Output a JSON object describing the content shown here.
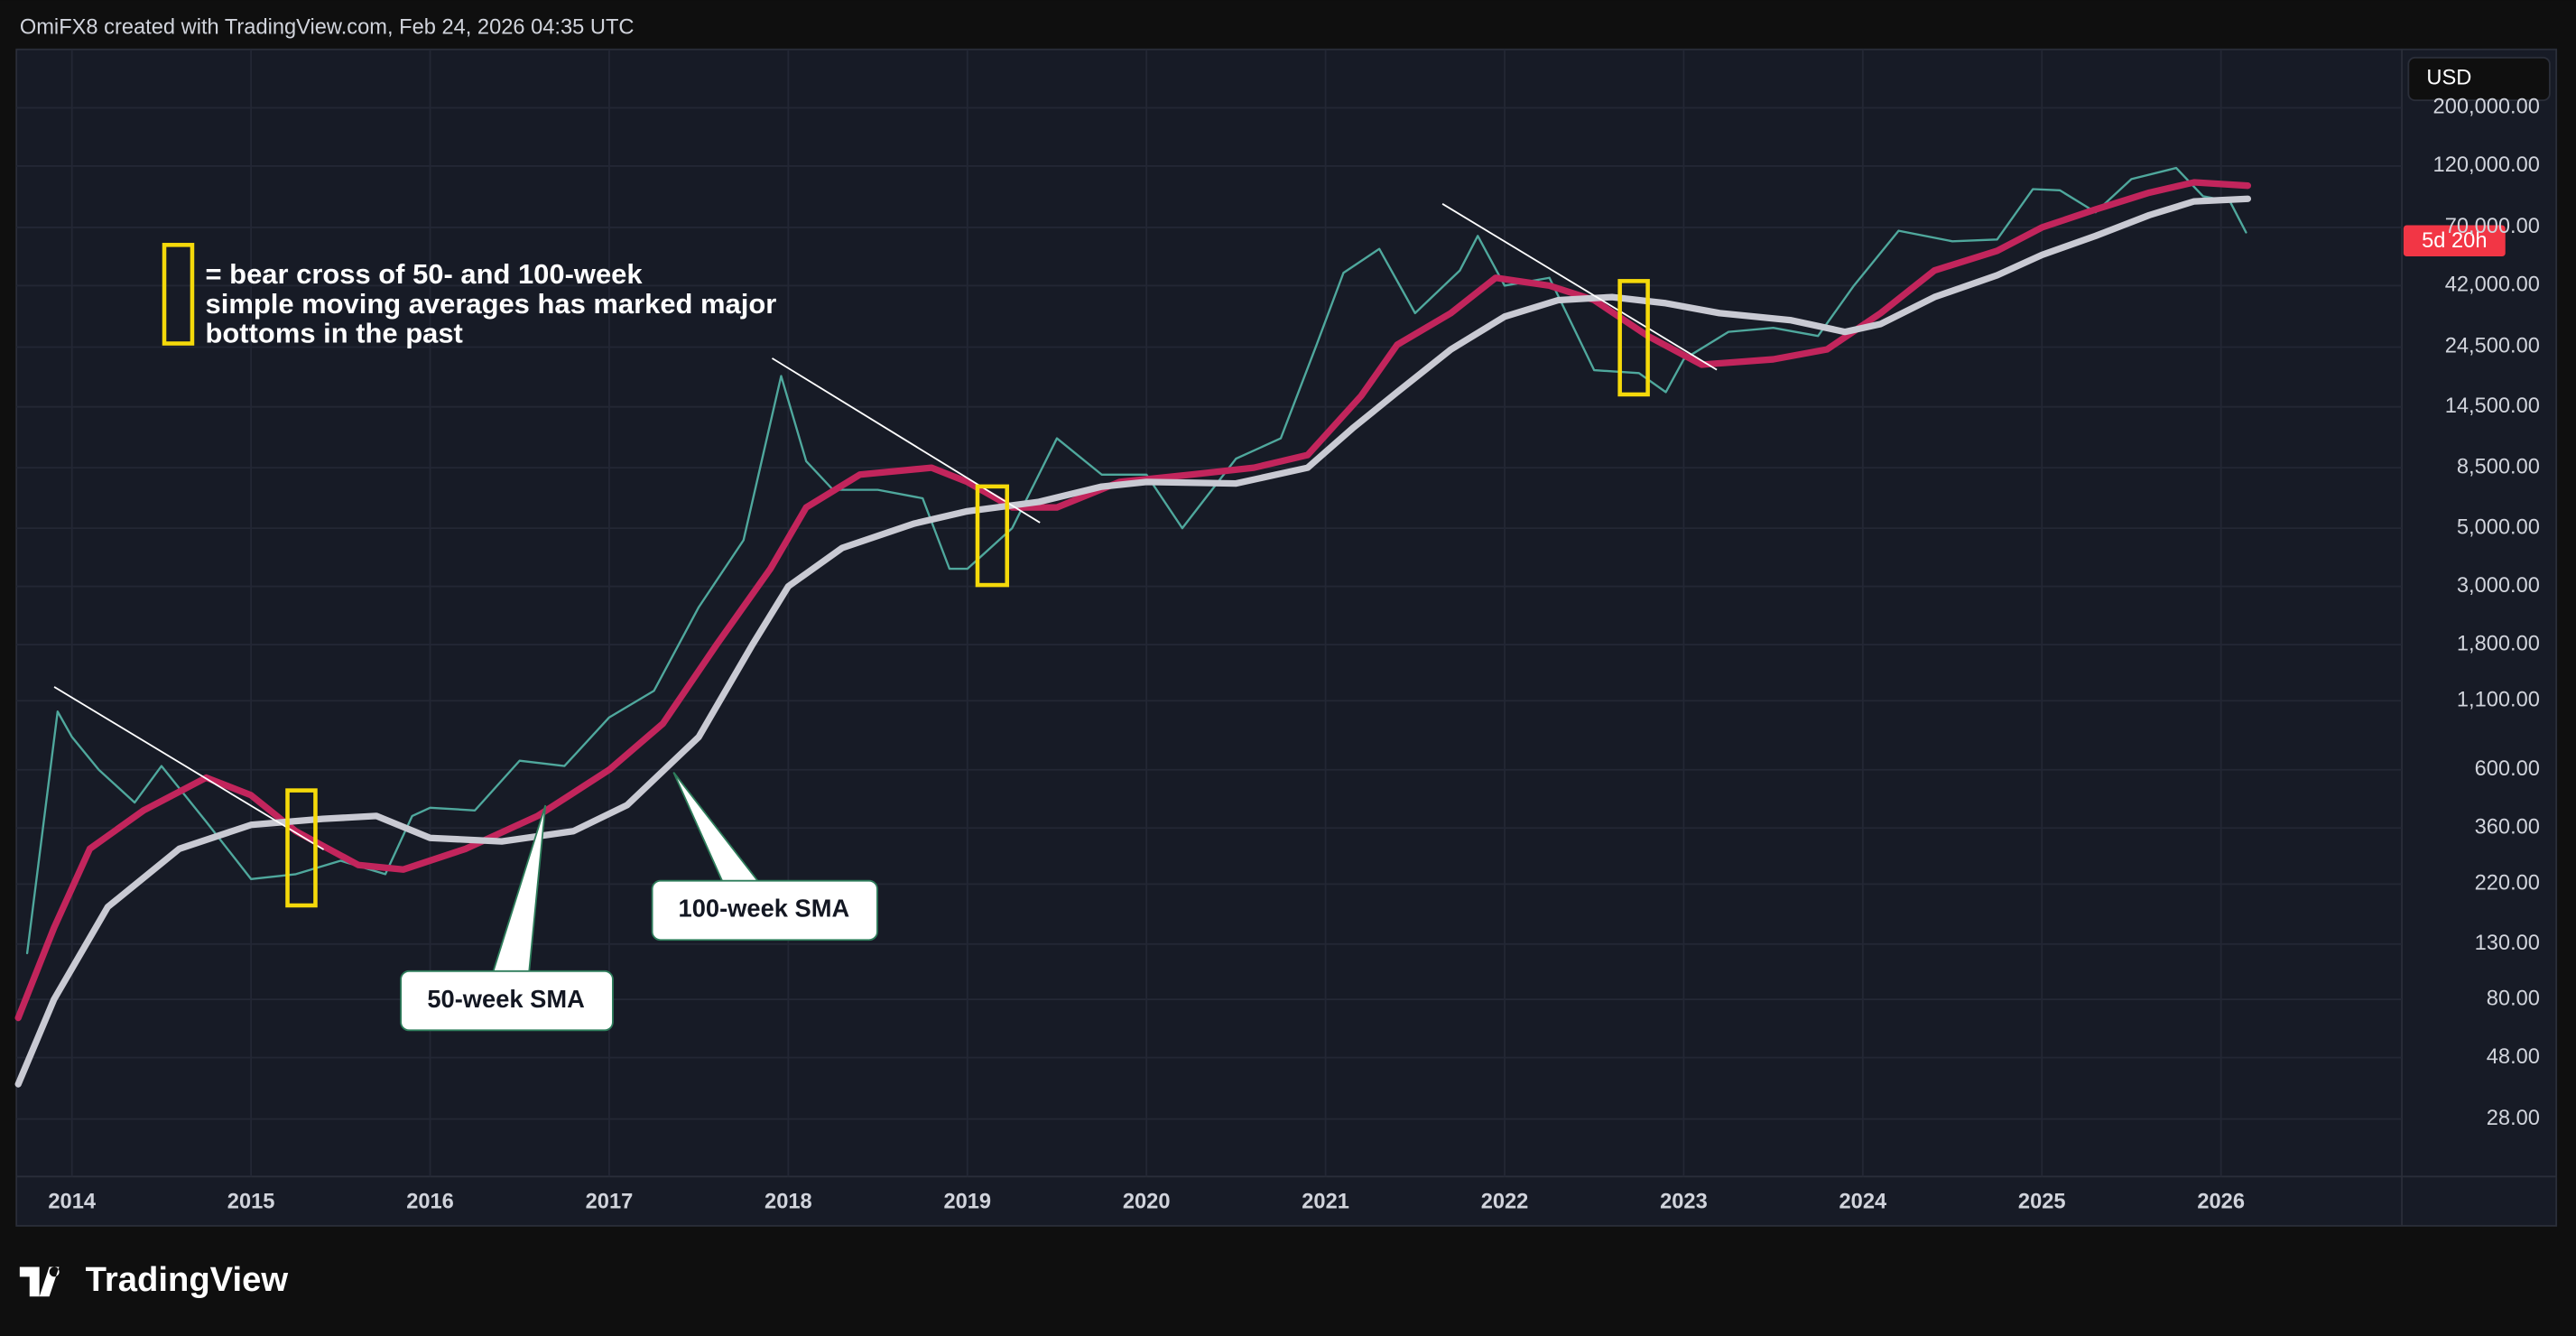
{
  "header": "OmiFX8 created with TradingView.com, Feb 24, 2026 04:35 UTC",
  "currency": "USD",
  "countdown": "5d 20h",
  "brand": "TradingView",
  "chart_data": {
    "type": "line",
    "log_scale": true,
    "grid": true,
    "annotation": [
      "= bear cross of 50- and 100-week",
      "simple moving averages has marked major",
      "bottoms in the past"
    ],
    "xlim": [
      2013.69,
      2027.01
    ],
    "xticks": [
      2014,
      2015,
      2016,
      2017,
      2018,
      2019,
      2020,
      2021,
      2022,
      2023,
      2024,
      2025,
      2026
    ],
    "ylim": [
      16.9,
      334000
    ],
    "yticks": [
      {
        "value": 28,
        "label": "28.00"
      },
      {
        "value": 48,
        "label": "48.00"
      },
      {
        "value": 80,
        "label": "80.00"
      },
      {
        "value": 130,
        "label": "130.00"
      },
      {
        "value": 220,
        "label": "220.00"
      },
      {
        "value": 360,
        "label": "360.00"
      },
      {
        "value": 600,
        "label": "600.00"
      },
      {
        "value": 1100,
        "label": "1,100.00"
      },
      {
        "value": 1800,
        "label": "1,800.00"
      },
      {
        "value": 3000,
        "label": "3,000.00"
      },
      {
        "value": 5000,
        "label": "5,000.00"
      },
      {
        "value": 8500,
        "label": "8,500.00"
      },
      {
        "value": 14500,
        "label": "14,500.00"
      },
      {
        "value": 24500,
        "label": "24,500.00"
      },
      {
        "value": 42000,
        "label": "42,000.00"
      },
      {
        "value": 70000,
        "label": "70,000.00"
      },
      {
        "value": 120000,
        "label": "120,000.00"
      },
      {
        "value": 200000,
        "label": "200,000.00"
      }
    ],
    "series": [
      {
        "color": "#4fa89d",
        "x": [
          2013.75,
          2013.92,
          2014.0,
          2014.15,
          2014.35,
          2014.5,
          2014.75,
          2015.0,
          2015.25,
          2015.5,
          2015.75,
          2015.9,
          2016.0,
          2016.25,
          2016.5,
          2016.75,
          2017.0,
          2017.25,
          2017.5,
          2017.75,
          2017.96,
          2018.1,
          2018.25,
          2018.5,
          2018.75,
          2018.9,
          2019.0,
          2019.25,
          2019.5,
          2019.75,
          2020.0,
          2020.2,
          2020.5,
          2020.75,
          2020.95,
          2021.1,
          2021.3,
          2021.5,
          2021.75,
          2021.85,
          2022.0,
          2022.25,
          2022.5,
          2022.75,
          2022.9,
          2023.0,
          2023.25,
          2023.5,
          2023.75,
          2023.95,
          2024.2,
          2024.5,
          2024.75,
          2024.95,
          2025.1,
          2025.3,
          2025.5,
          2025.75,
          2025.9,
          2026.05,
          2026.14
        ],
        "values": [
          120,
          1000,
          800,
          600,
          450,
          620,
          380,
          230,
          240,
          270,
          240,
          400,
          430,
          420,
          650,
          620,
          950,
          1200,
          2500,
          4500,
          19000,
          9000,
          7000,
          7000,
          6500,
          3500,
          3500,
          5000,
          11000,
          8000,
          8000,
          5000,
          9200,
          11000,
          25000,
          47000,
          58000,
          33000,
          48000,
          65000,
          42000,
          45000,
          20000,
          19500,
          16500,
          22000,
          28000,
          29000,
          27000,
          42000,
          68000,
          62000,
          63000,
          98000,
          97000,
          80000,
          107000,
          118000,
          92000,
          88000,
          67000
        ]
      },
      {
        "name": "50-week SMA",
        "color": "#c2255c",
        "x": [
          2013.7,
          2013.9,
          2014.1,
          2014.4,
          2014.75,
          2015.0,
          2015.25,
          2015.6,
          2015.85,
          2016.2,
          2016.6,
          2017.0,
          2017.3,
          2017.6,
          2017.9,
          2018.1,
          2018.4,
          2018.8,
          2019.0,
          2019.25,
          2019.5,
          2019.85,
          2020.25,
          2020.6,
          2020.9,
          2021.2,
          2021.4,
          2021.7,
          2021.95,
          2022.25,
          2022.5,
          2022.8,
          2023.1,
          2023.5,
          2023.8,
          2024.1,
          2024.4,
          2024.75,
          2025.0,
          2025.3,
          2025.6,
          2025.85,
          2026.15
        ],
        "values": [
          68,
          150,
          300,
          420,
          560,
          480,
          350,
          260,
          250,
          300,
          400,
          600,
          900,
          1800,
          3500,
          6000,
          8000,
          8500,
          7500,
          6000,
          6000,
          7500,
          8000,
          8500,
          9500,
          16000,
          25000,
          33000,
          45000,
          42000,
          37000,
          27000,
          21000,
          22000,
          24000,
          33000,
          48000,
          57000,
          70000,
          82000,
          95000,
          104000,
          101000
        ]
      },
      {
        "name": "100-week SMA",
        "color": "#c9cad3",
        "x": [
          2013.7,
          2013.9,
          2014.2,
          2014.6,
          2015.0,
          2015.4,
          2015.7,
          2016.0,
          2016.4,
          2016.8,
          2017.1,
          2017.5,
          2017.8,
          2018.0,
          2018.3,
          2018.7,
          2019.0,
          2019.4,
          2019.75,
          2020.0,
          2020.5,
          2020.9,
          2021.15,
          2021.4,
          2021.7,
          2022.0,
          2022.3,
          2022.6,
          2022.9,
          2023.2,
          2023.6,
          2023.9,
          2024.1,
          2024.4,
          2024.75,
          2025.0,
          2025.3,
          2025.6,
          2025.85,
          2026.15
        ],
        "values": [
          38,
          80,
          180,
          300,
          370,
          390,
          400,
          330,
          320,
          350,
          440,
          800,
          1800,
          3000,
          4200,
          5200,
          5800,
          6300,
          7200,
          7500,
          7400,
          8500,
          12000,
          16500,
          24000,
          32000,
          37000,
          38000,
          36000,
          33000,
          31000,
          28000,
          30000,
          38000,
          46000,
          55000,
          65000,
          78000,
          88000,
          90000
        ]
      }
    ]
  }
}
